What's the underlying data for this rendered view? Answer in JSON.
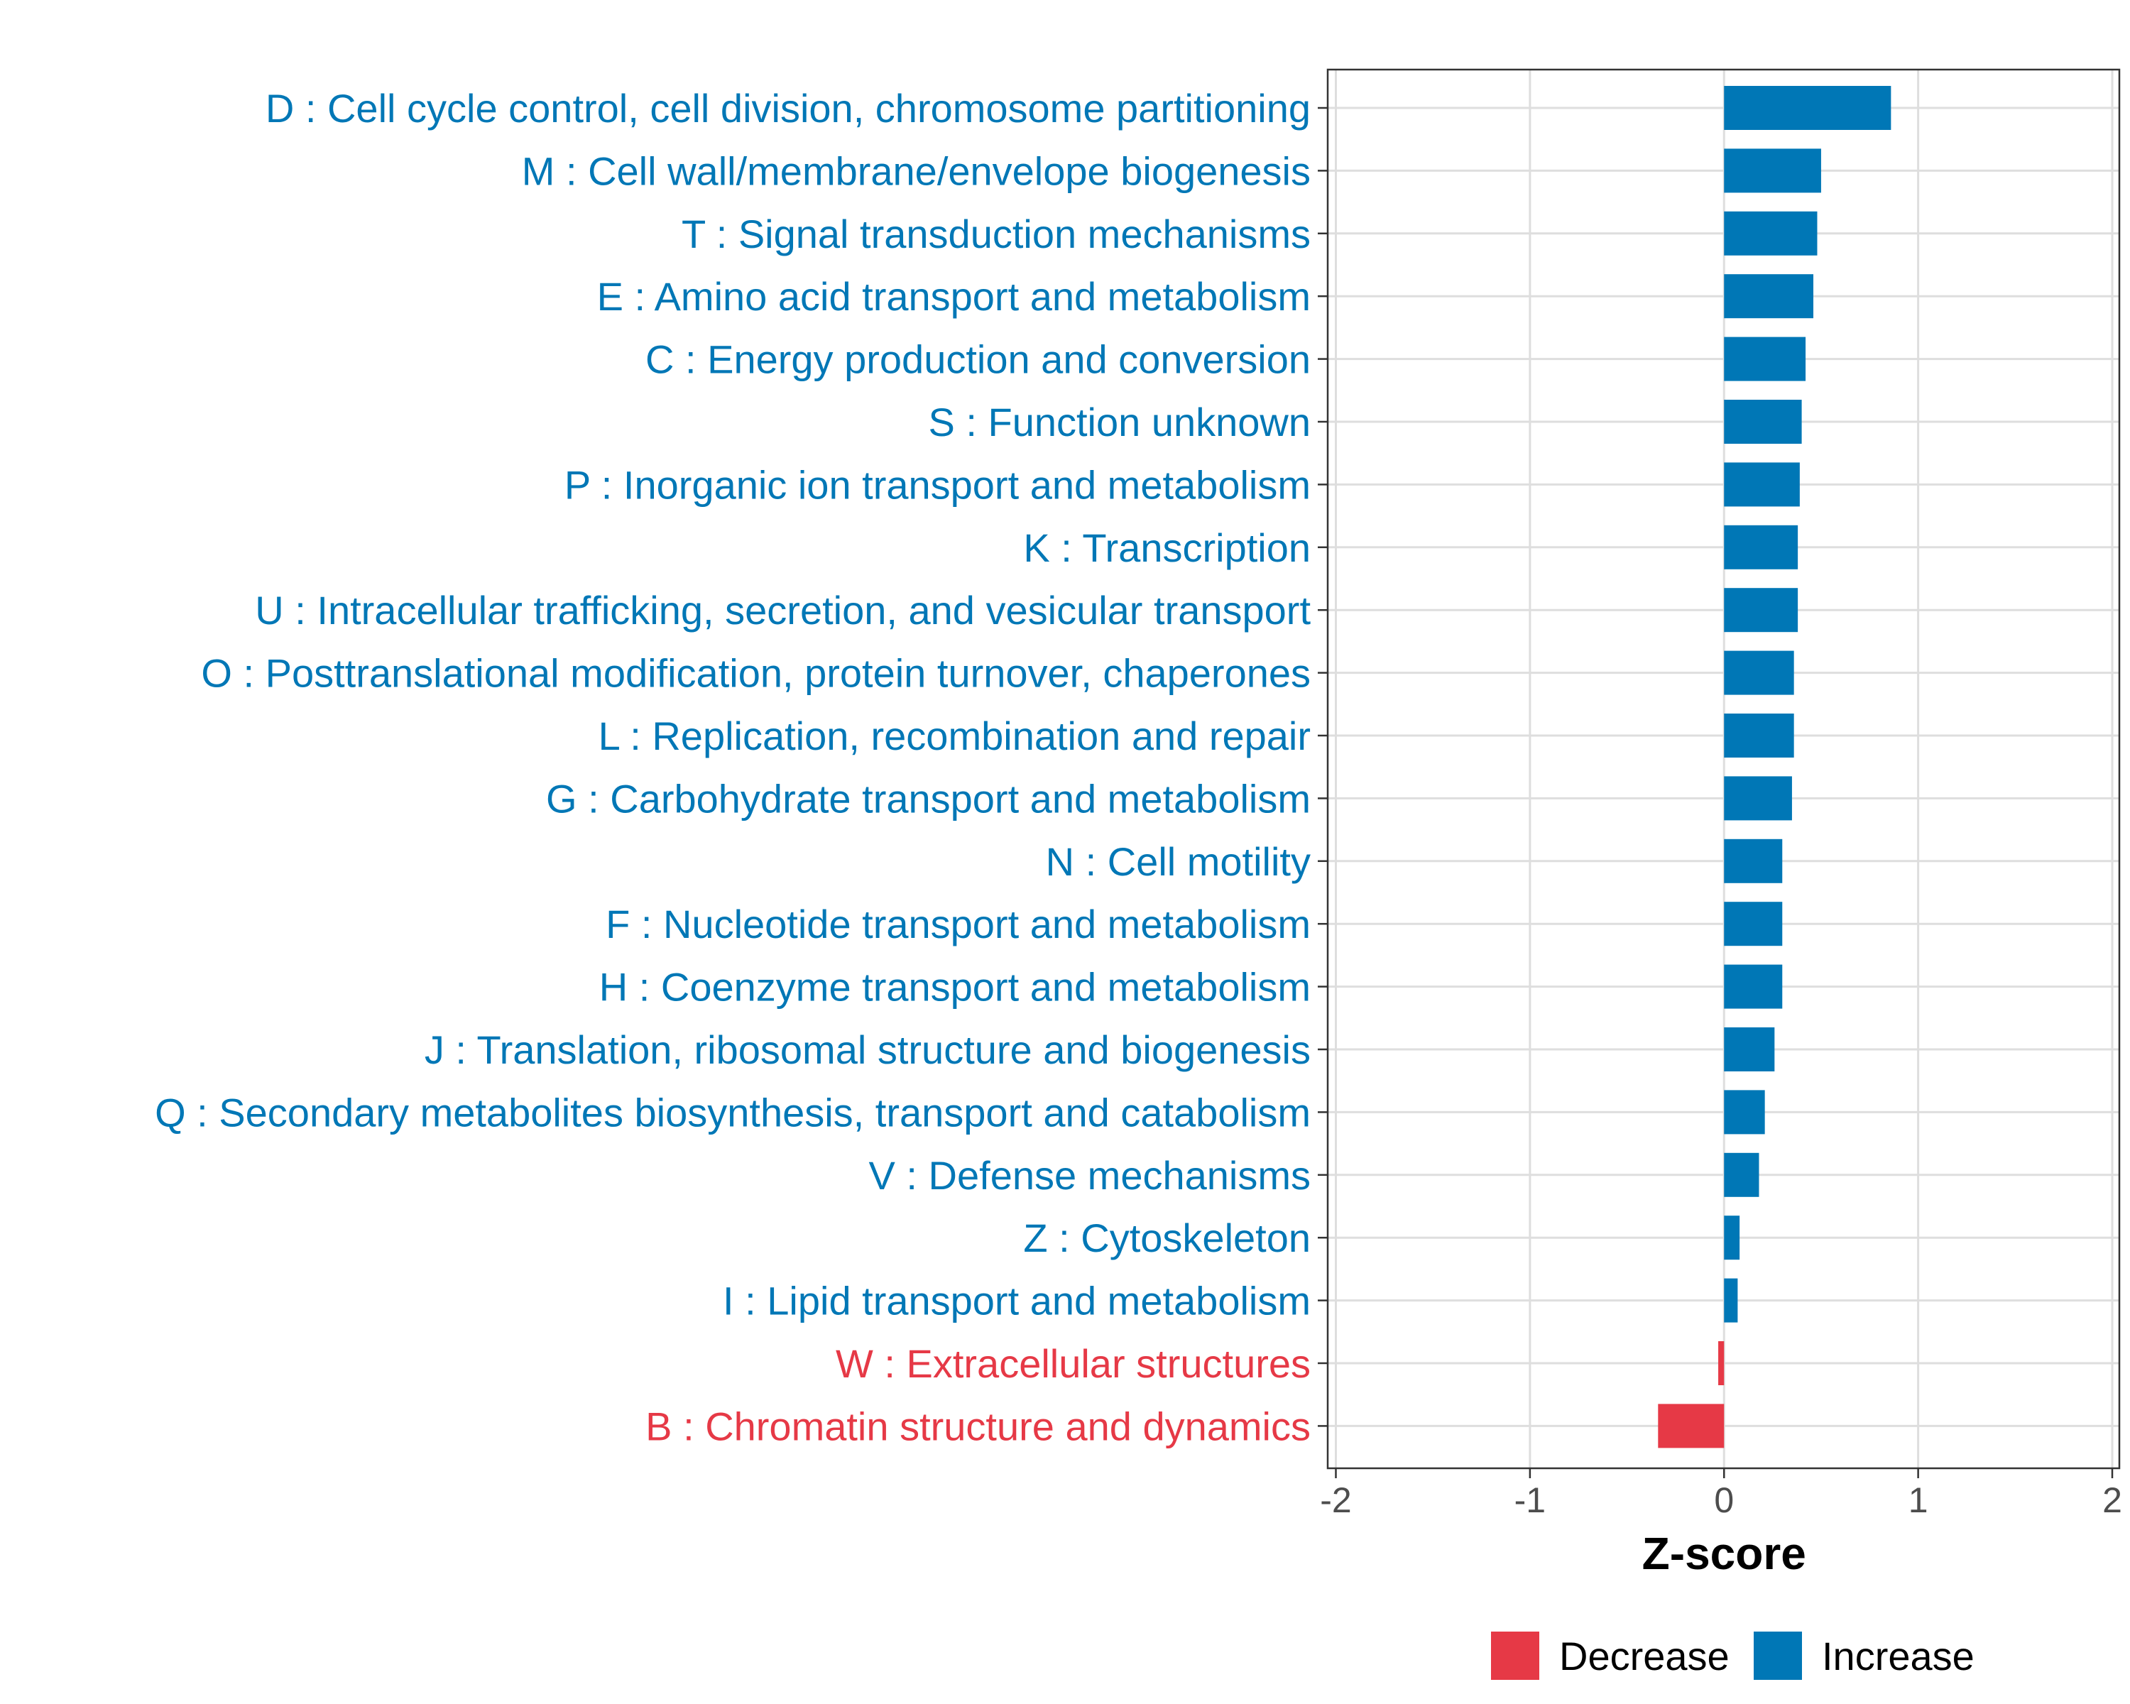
{
  "chart_data": {
    "type": "bar",
    "orientation": "horizontal",
    "title": "",
    "xlabel": "Z-score",
    "ylabel": "",
    "xlim": [
      -2,
      2
    ],
    "xticks": [
      -2,
      -1,
      0,
      1,
      2
    ],
    "xtick_labels": [
      "-2",
      "-1",
      "0",
      "1",
      "2"
    ],
    "grid": true,
    "legend_position": "bottom",
    "colors": {
      "Decrease": "#e63946",
      "Increase": "#0077b6"
    },
    "categories": [
      "D : Cell cycle control, cell division, chromosome partitioning",
      "M : Cell wall/membrane/envelope biogenesis",
      "T : Signal transduction mechanisms",
      "E : Amino acid transport and metabolism",
      "C : Energy production and conversion",
      "S : Function unknown",
      "P : Inorganic ion transport and metabolism",
      "K : Transcription",
      "U : Intracellular trafficking, secretion, and vesicular transport",
      "O : Posttranslational modification, protein turnover, chaperones",
      "L : Replication, recombination and repair",
      "G : Carbohydrate transport and metabolism",
      "N : Cell motility",
      "F : Nucleotide transport and metabolism",
      "H : Coenzyme transport and metabolism",
      "J : Translation, ribosomal structure and biogenesis",
      "Q : Secondary metabolites biosynthesis, transport and catabolism",
      "V : Defense mechanisms",
      "Z : Cytoskeleton",
      "I : Lipid transport and metabolism",
      "W : Extracellular structures",
      "B : Chromatin structure and dynamics"
    ],
    "values": [
      0.86,
      0.5,
      0.48,
      0.46,
      0.42,
      0.4,
      0.39,
      0.38,
      0.38,
      0.36,
      0.36,
      0.35,
      0.3,
      0.3,
      0.3,
      0.26,
      0.21,
      0.18,
      0.08,
      0.07,
      -0.03,
      -0.34
    ],
    "groups": [
      "Increase",
      "Increase",
      "Increase",
      "Increase",
      "Increase",
      "Increase",
      "Increase",
      "Increase",
      "Increase",
      "Increase",
      "Increase",
      "Increase",
      "Increase",
      "Increase",
      "Increase",
      "Increase",
      "Increase",
      "Increase",
      "Increase",
      "Increase",
      "Decrease",
      "Decrease"
    ],
    "legend": [
      {
        "label": "Decrease",
        "color": "#e63946"
      },
      {
        "label": "Increase",
        "color": "#0077b6"
      }
    ]
  }
}
